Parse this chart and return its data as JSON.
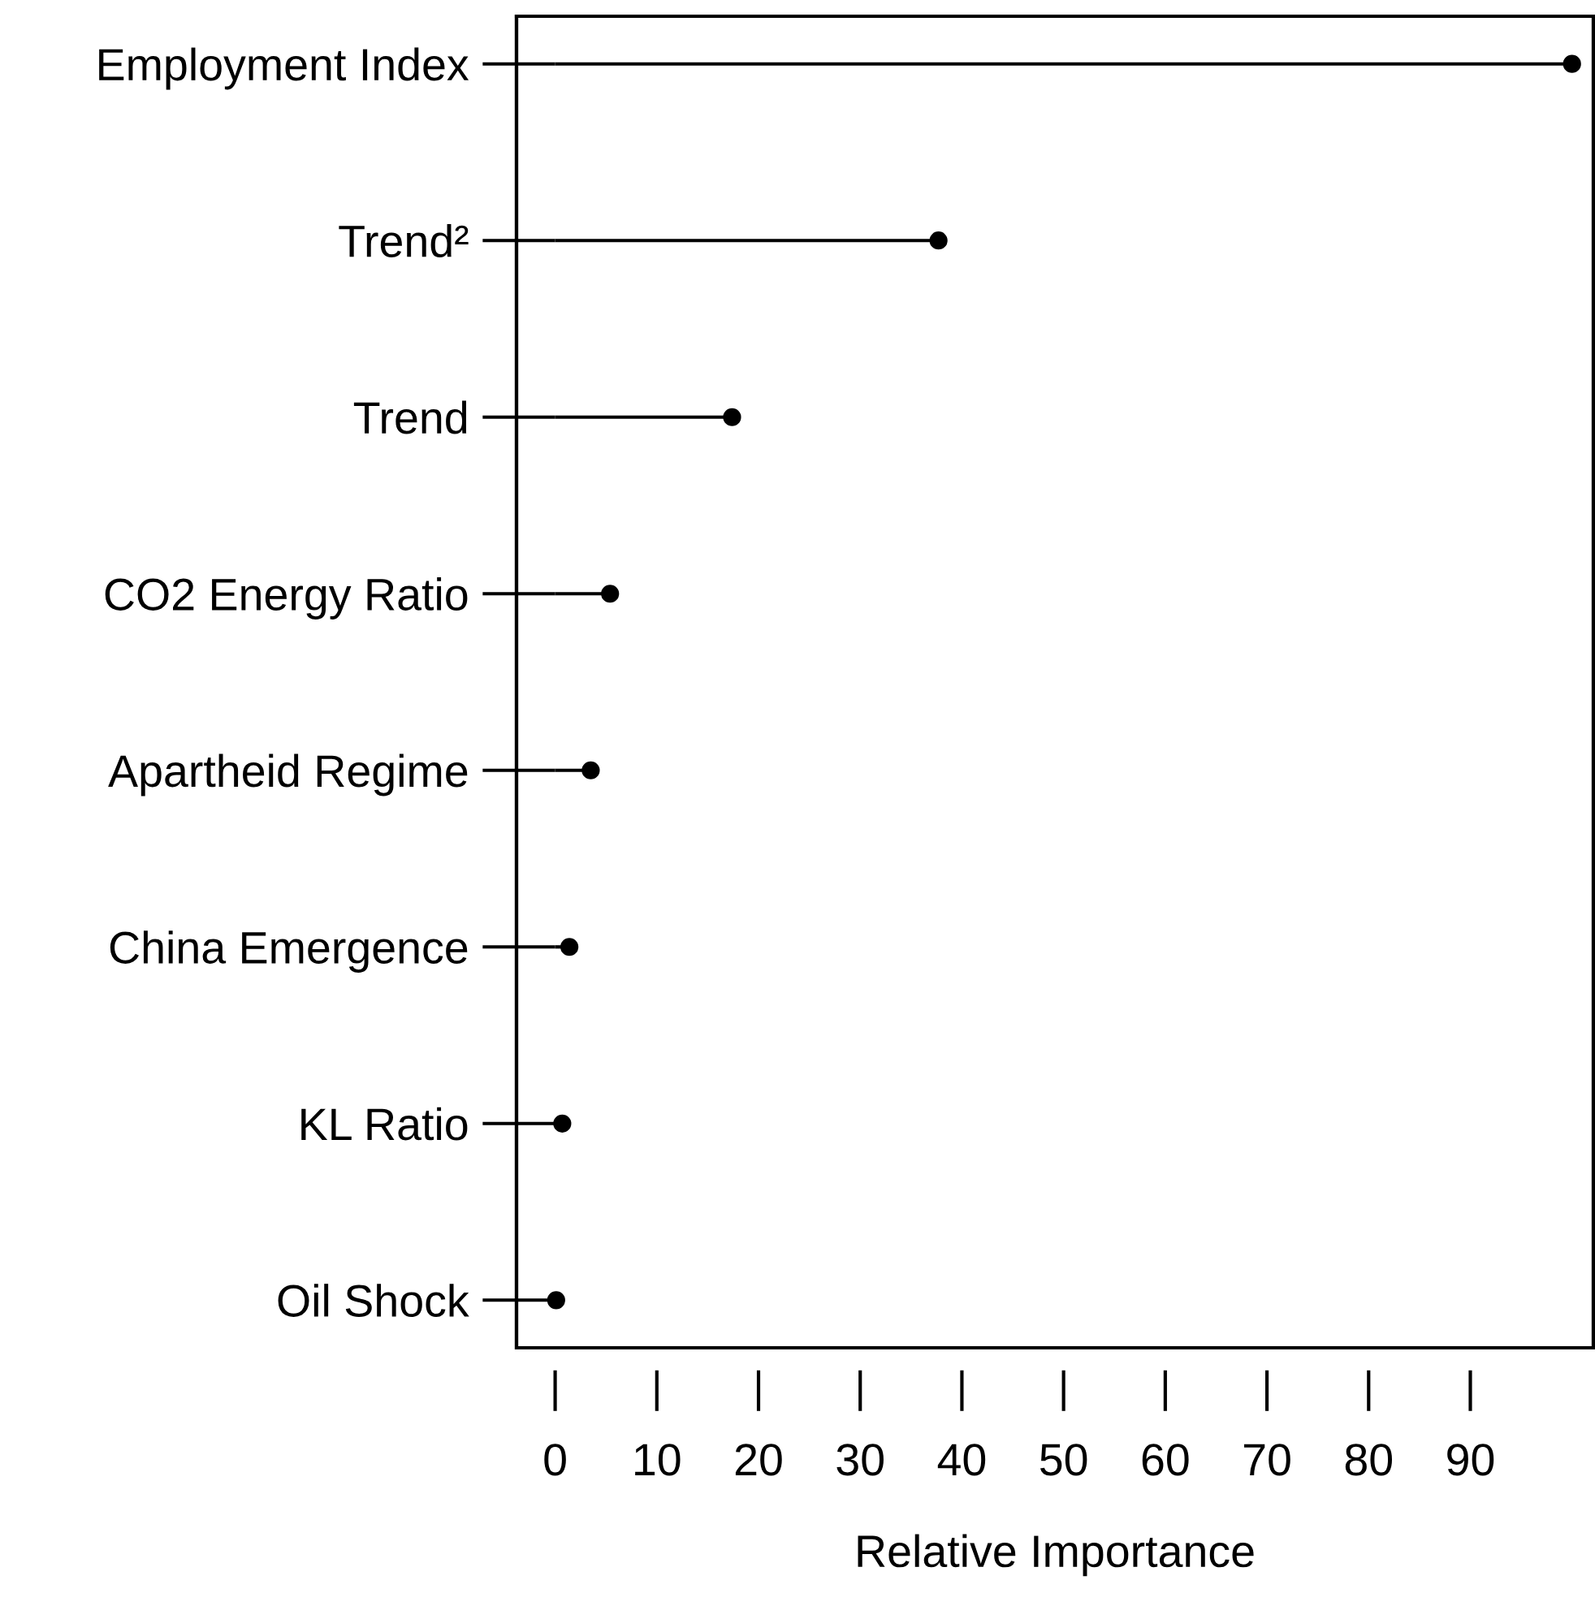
{
  "chart_data": {
    "type": "lollipop",
    "orientation": "horizontal",
    "xlabel": "Relative Importance",
    "categories": [
      "Employment Index",
      "Trend²",
      "Trend",
      "CO2 Energy Ratio",
      "Apartheid Regime",
      "China Emergence",
      "KL Ratio",
      "Oil Shock"
    ],
    "values": [
      100,
      37.7,
      17.4,
      5.4,
      3.5,
      1.4,
      0.7,
      0.1
    ],
    "color": "#000000",
    "marker": "circle",
    "grid": false,
    "xlim": [
      -3.8,
      102.1
    ],
    "xticks": [
      0,
      10,
      20,
      30,
      40,
      50,
      60,
      70,
      80,
      90
    ]
  }
}
